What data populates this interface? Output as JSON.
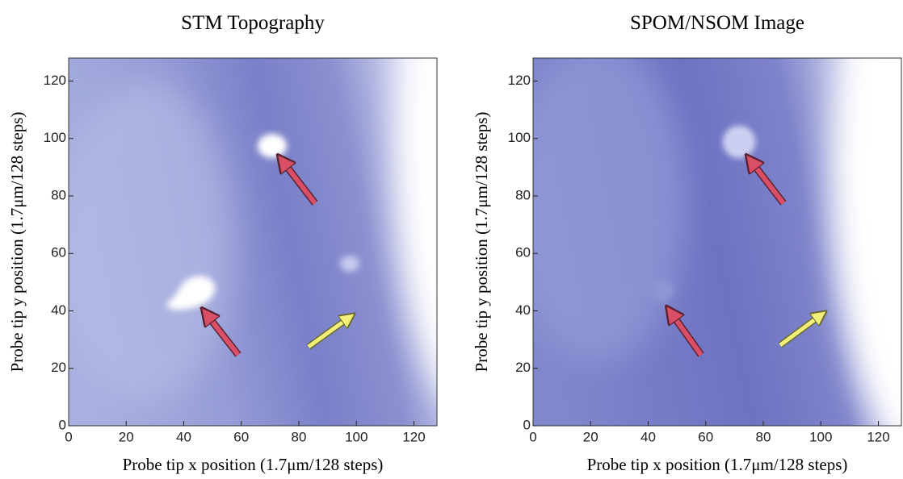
{
  "chart_data": [
    {
      "type": "image",
      "title": "STM Topography",
      "xlabel": "Probe tip x position (1.7μm/128 steps)",
      "ylabel": "Probe tip y position (1.7μm/128 steps)",
      "xlim": [
        0,
        128
      ],
      "ylim": [
        0,
        128
      ],
      "xticks": [
        0,
        20,
        40,
        60,
        80,
        100,
        120
      ],
      "yticks": [
        0,
        20,
        40,
        60,
        80,
        100,
        120
      ]
    },
    {
      "type": "image",
      "title": "SPOM/NSOM Image",
      "xlabel": "Probe tip x position (1.7μm/128 steps)",
      "ylabel": "Probe tip y position (1.7μm/128 steps)",
      "xlim": [
        0,
        128
      ],
      "ylim": [
        0,
        128
      ],
      "xticks": [
        0,
        20,
        40,
        60,
        80,
        100,
        120
      ],
      "yticks": [
        0,
        20,
        40,
        60,
        80,
        100,
        120
      ]
    }
  ]
}
